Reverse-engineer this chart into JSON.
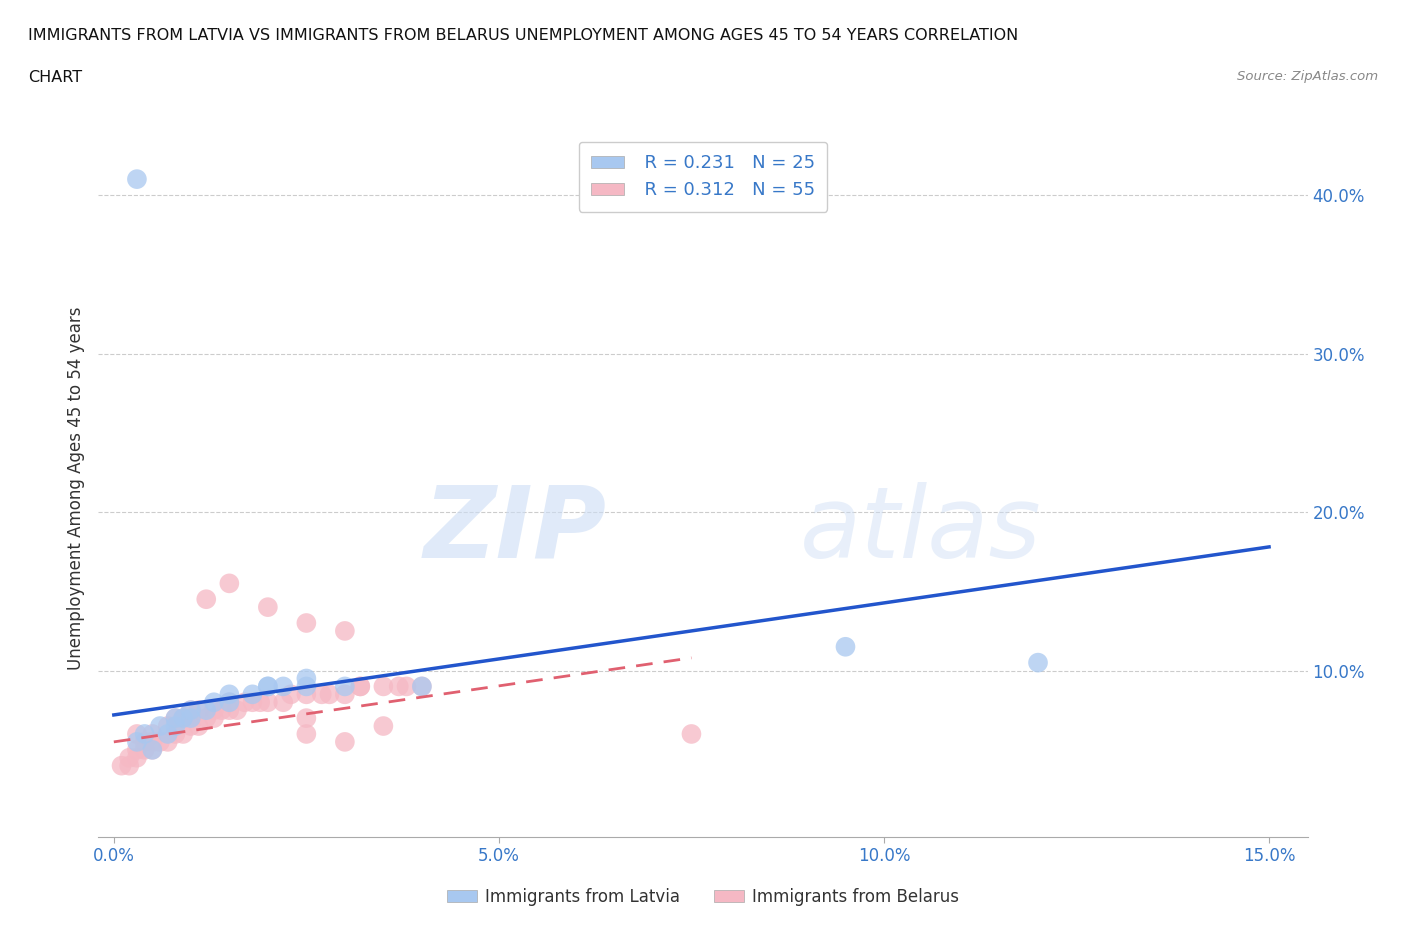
{
  "title_line1": "IMMIGRANTS FROM LATVIA VS IMMIGRANTS FROM BELARUS UNEMPLOYMENT AMONG AGES 45 TO 54 YEARS CORRELATION",
  "title_line2": "CHART",
  "source_text": "Source: ZipAtlas.com",
  "ylabel": "Unemployment Among Ages 45 to 54 years",
  "xlim": [
    -0.002,
    0.155
  ],
  "ylim": [
    -0.005,
    0.435
  ],
  "xticks": [
    0.0,
    0.05,
    0.1,
    0.15
  ],
  "xticklabels": [
    "0.0%",
    "5.0%",
    "10.0%",
    "15.0%"
  ],
  "yticks": [
    0.1,
    0.2,
    0.3,
    0.4
  ],
  "yticklabels": [
    "10.0%",
    "20.0%",
    "30.0%",
    "40.0%"
  ],
  "watermark_zip": "ZIP",
  "watermark_atlas": "atlas",
  "legend_r_latvia": "R = 0.231",
  "legend_n_latvia": "N = 25",
  "legend_r_belarus": "R = 0.312",
  "legend_n_belarus": "N = 55",
  "latvia_color": "#a8c8f0",
  "belarus_color": "#f5b8c4",
  "latvia_line_color": "#2255cc",
  "belarus_line_color": "#e06070",
  "grid_color": "#cccccc",
  "latvia_line_x0": 0.0,
  "latvia_line_y0": 0.072,
  "latvia_line_x1": 0.15,
  "latvia_line_y1": 0.178,
  "belarus_line_x0": 0.0,
  "belarus_line_y0": 0.055,
  "belarus_line_x1": 0.075,
  "belarus_line_y1": 0.108,
  "latvia_x": [
    0.003,
    0.005,
    0.007,
    0.008,
    0.009,
    0.01,
    0.012,
    0.013,
    0.015,
    0.018,
    0.02,
    0.022,
    0.025,
    0.03,
    0.04,
    0.095,
    0.12,
    0.003,
    0.004,
    0.006,
    0.008,
    0.01,
    0.015,
    0.02,
    0.025
  ],
  "latvia_y": [
    0.41,
    0.05,
    0.06,
    0.065,
    0.07,
    0.07,
    0.075,
    0.08,
    0.085,
    0.085,
    0.09,
    0.09,
    0.09,
    0.09,
    0.09,
    0.115,
    0.105,
    0.055,
    0.06,
    0.065,
    0.07,
    0.075,
    0.08,
    0.09,
    0.095
  ],
  "belarus_x": [
    0.001,
    0.002,
    0.003,
    0.004,
    0.005,
    0.006,
    0.007,
    0.008,
    0.009,
    0.01,
    0.011,
    0.012,
    0.013,
    0.014,
    0.015,
    0.016,
    0.018,
    0.02,
    0.022,
    0.025,
    0.028,
    0.03,
    0.032,
    0.035,
    0.038,
    0.04,
    0.012,
    0.015,
    0.02,
    0.025,
    0.03,
    0.025,
    0.03,
    0.035,
    0.025,
    0.015,
    0.01,
    0.008,
    0.005,
    0.003,
    0.002,
    0.004,
    0.007,
    0.009,
    0.011,
    0.013,
    0.017,
    0.019,
    0.023,
    0.027,
    0.032,
    0.037,
    0.075,
    0.003,
    0.005
  ],
  "belarus_y": [
    0.04,
    0.04,
    0.045,
    0.05,
    0.05,
    0.055,
    0.055,
    0.06,
    0.06,
    0.065,
    0.065,
    0.07,
    0.07,
    0.075,
    0.075,
    0.075,
    0.08,
    0.08,
    0.08,
    0.085,
    0.085,
    0.085,
    0.09,
    0.09,
    0.09,
    0.09,
    0.145,
    0.155,
    0.14,
    0.13,
    0.125,
    0.06,
    0.055,
    0.065,
    0.07,
    0.08,
    0.075,
    0.07,
    0.06,
    0.05,
    0.045,
    0.055,
    0.065,
    0.07,
    0.075,
    0.075,
    0.08,
    0.08,
    0.085,
    0.085,
    0.09,
    0.09,
    0.06,
    0.06,
    0.055
  ]
}
